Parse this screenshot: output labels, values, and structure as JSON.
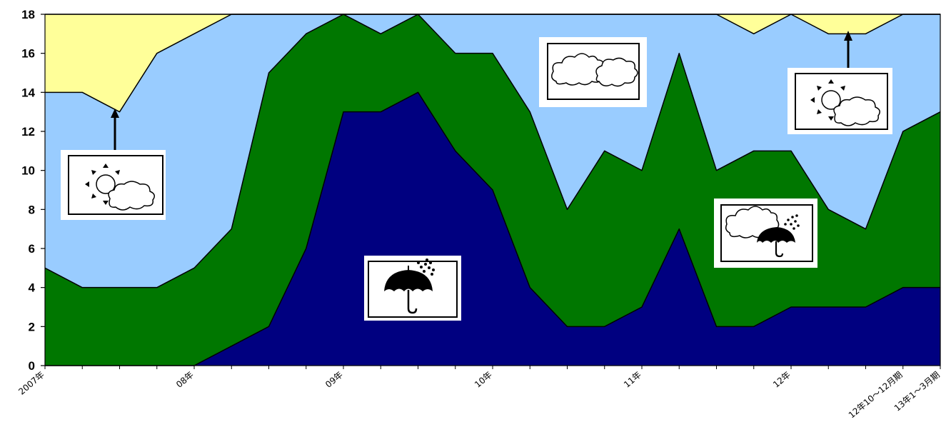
{
  "chart_data": {
    "type": "area",
    "stacked": true,
    "ylim": [
      0,
      18
    ],
    "yticks": [
      0,
      2,
      4,
      6,
      8,
      10,
      12,
      14,
      16,
      18
    ],
    "grid": false,
    "legend": "none",
    "x_tick_labels": [
      {
        "index": 0,
        "label": "2007年"
      },
      {
        "index": 4,
        "label": "08年"
      },
      {
        "index": 8,
        "label": "09年"
      },
      {
        "index": 12,
        "label": "10年"
      },
      {
        "index": 16,
        "label": "11年"
      },
      {
        "index": 20,
        "label": "12年"
      },
      {
        "index": 23,
        "label": "12年10～12月期"
      },
      {
        "index": 24,
        "label": "13年1～3月期"
      }
    ],
    "series": [
      {
        "icon": "umbrella-rain-icon",
        "color": "#000080",
        "values": [
          0,
          0,
          0,
          0,
          0,
          1,
          2,
          6,
          13,
          13,
          14,
          11,
          9,
          4,
          2,
          2,
          3,
          7,
          2,
          2,
          3,
          3,
          3,
          4,
          4
        ]
      },
      {
        "icon": "cloud-rain-icon",
        "color": "#007700",
        "values": [
          5,
          4,
          4,
          4,
          5,
          6,
          13,
          11,
          5,
          4,
          4,
          5,
          7,
          9,
          6,
          9,
          7,
          9,
          8,
          9,
          8,
          5,
          4,
          8,
          9
        ]
      },
      {
        "icon": "cloudy-icon",
        "color": "#99ccff",
        "values": [
          9,
          10,
          9,
          12,
          12,
          11,
          3,
          1,
          0,
          1,
          0,
          2,
          2,
          5,
          10,
          7,
          8,
          2,
          8,
          6,
          7,
          9,
          10,
          6,
          5
        ]
      },
      {
        "icon": "sun-cloud-icon",
        "color": "#ffff99",
        "values": [
          4,
          4,
          5,
          2,
          1,
          0,
          0,
          0,
          0,
          0,
          0,
          0,
          0,
          0,
          0,
          0,
          0,
          0,
          0,
          1,
          0,
          1,
          1,
          0,
          0
        ]
      }
    ]
  }
}
